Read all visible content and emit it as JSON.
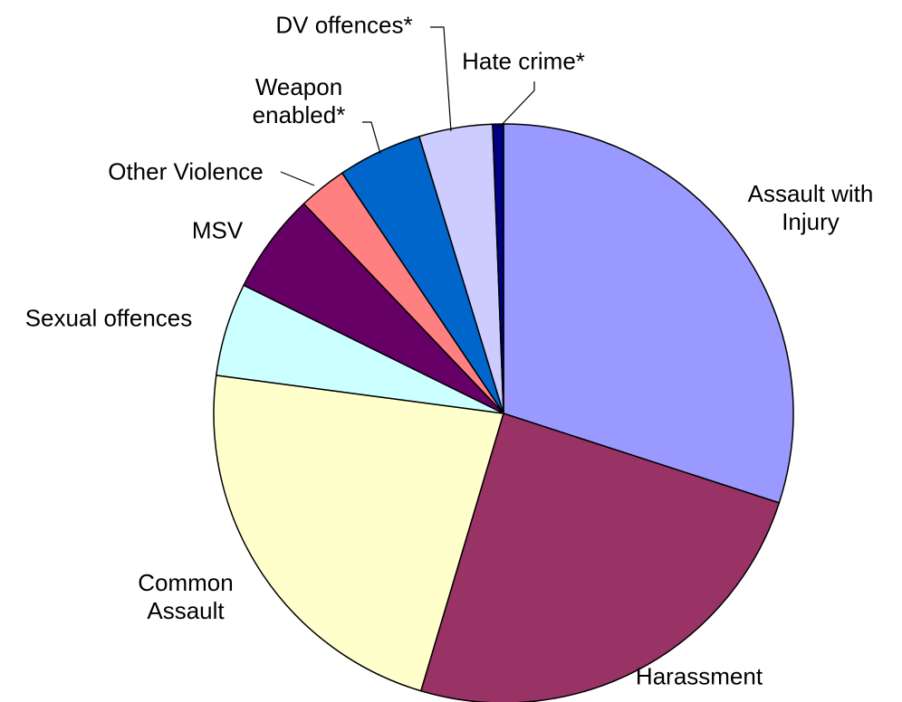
{
  "chart_data": {
    "type": "pie",
    "categories": [
      "Assault with Injury",
      "Harassment",
      "Common Assault",
      "Sexual offences",
      "MSV",
      "Other Violence",
      "Weapon enabled*",
      "DV offences*",
      "Hate crime*"
    ],
    "values": [
      30,
      24.6,
      22.5,
      5.2,
      5.6,
      2.7,
      4.7,
      4.1,
      0.6
    ],
    "colors": [
      "#9999ff",
      "#993366",
      "#ffffcc",
      "#ccffff",
      "#660066",
      "#ff8080",
      "#0066cc",
      "#ccccff",
      "#000080"
    ]
  }
}
